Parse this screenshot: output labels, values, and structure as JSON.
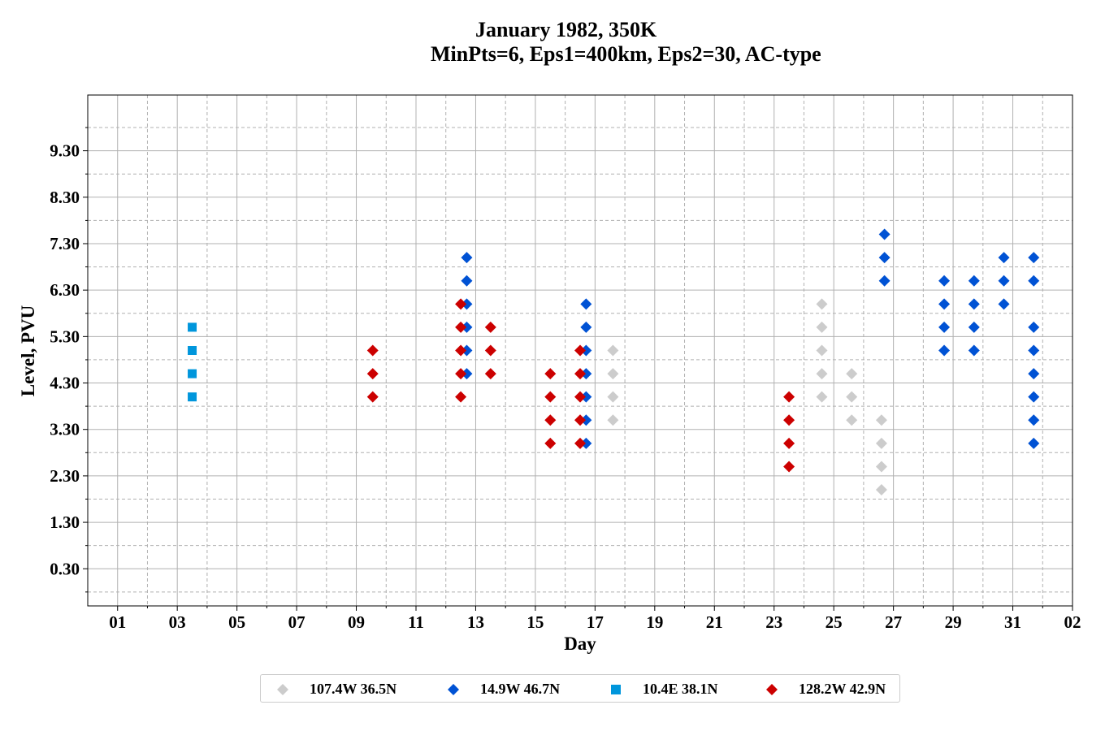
{
  "chart_data": {
    "type": "scatter",
    "title": "January 1982, 350K",
    "subtitle": "MinPts=6, Eps1=400km, Eps2=30, AC-type",
    "xlabel": "Day",
    "ylabel": "Level, PVU",
    "xlim": [
      0,
      33
    ],
    "ylim": [
      -0.5,
      10.5
    ],
    "x_ticks": [
      "01",
      "03",
      "05",
      "07",
      "09",
      "11",
      "13",
      "15",
      "17",
      "19",
      "21",
      "23",
      "25",
      "27",
      "29",
      "31",
      "02"
    ],
    "y_ticks": [
      "0.30",
      "1.30",
      "2.30",
      "3.30",
      "4.30",
      "5.30",
      "6.30",
      "7.30",
      "8.30",
      "9.30"
    ],
    "grid": true,
    "legend_position": "bottom-center",
    "series": [
      {
        "name": "107.4W 36.5N",
        "color": "#cccccc",
        "marker": "diamond",
        "points": [
          [
            17.6,
            3.5
          ],
          [
            17.6,
            4.0
          ],
          [
            17.6,
            4.5
          ],
          [
            17.6,
            5.0
          ],
          [
            24.6,
            4.0
          ],
          [
            24.6,
            4.5
          ],
          [
            24.6,
            5.0
          ],
          [
            24.6,
            5.5
          ],
          [
            24.6,
            6.0
          ],
          [
            25.6,
            3.5
          ],
          [
            25.6,
            4.0
          ],
          [
            25.6,
            4.5
          ],
          [
            26.6,
            2.0
          ],
          [
            26.6,
            2.5
          ],
          [
            26.6,
            3.0
          ],
          [
            26.6,
            3.5
          ]
        ]
      },
      {
        "name": "14.9W 46.7N",
        "color": "#0052d4",
        "marker": "diamond",
        "points": [
          [
            12.7,
            4.5
          ],
          [
            12.7,
            5.0
          ],
          [
            12.7,
            5.5
          ],
          [
            12.7,
            6.0
          ],
          [
            12.7,
            6.5
          ],
          [
            12.7,
            7.0
          ],
          [
            16.7,
            3.0
          ],
          [
            16.7,
            3.5
          ],
          [
            16.7,
            4.0
          ],
          [
            16.7,
            4.5
          ],
          [
            16.7,
            5.0
          ],
          [
            16.7,
            5.5
          ],
          [
            16.7,
            6.0
          ],
          [
            26.7,
            6.5
          ],
          [
            26.7,
            7.0
          ],
          [
            26.7,
            7.5
          ],
          [
            28.7,
            5.0
          ],
          [
            28.7,
            5.5
          ],
          [
            28.7,
            6.0
          ],
          [
            28.7,
            6.5
          ],
          [
            29.7,
            5.0
          ],
          [
            29.7,
            5.5
          ],
          [
            29.7,
            6.0
          ],
          [
            29.7,
            6.5
          ],
          [
            30.7,
            6.0
          ],
          [
            30.7,
            6.5
          ],
          [
            30.7,
            7.0
          ],
          [
            31.7,
            3.0
          ],
          [
            31.7,
            3.5
          ],
          [
            31.7,
            4.0
          ],
          [
            31.7,
            4.5
          ],
          [
            31.7,
            5.0
          ],
          [
            31.7,
            5.5
          ],
          [
            31.7,
            6.5
          ],
          [
            31.7,
            7.0
          ]
        ]
      },
      {
        "name": "10.4E 38.1N",
        "color": "#0096dc",
        "marker": "square",
        "points": [
          [
            3.5,
            4.0
          ],
          [
            3.5,
            4.5
          ],
          [
            3.5,
            5.0
          ],
          [
            3.5,
            5.5
          ]
        ]
      },
      {
        "name": "128.2W 42.9N",
        "color": "#cc0000",
        "marker": "diamond",
        "points": [
          [
            9.55,
            4.0
          ],
          [
            9.55,
            4.5
          ],
          [
            9.55,
            5.0
          ],
          [
            12.5,
            4.0
          ],
          [
            12.5,
            4.5
          ],
          [
            12.5,
            5.0
          ],
          [
            12.5,
            5.5
          ],
          [
            12.5,
            6.0
          ],
          [
            13.5,
            4.5
          ],
          [
            13.5,
            5.0
          ],
          [
            13.5,
            5.5
          ],
          [
            15.5,
            3.0
          ],
          [
            15.5,
            3.5
          ],
          [
            15.5,
            4.0
          ],
          [
            15.5,
            4.5
          ],
          [
            16.5,
            3.0
          ],
          [
            16.5,
            3.5
          ],
          [
            16.5,
            4.0
          ],
          [
            16.5,
            4.5
          ],
          [
            16.5,
            5.0
          ],
          [
            23.5,
            2.5
          ],
          [
            23.5,
            3.0
          ],
          [
            23.5,
            3.5
          ],
          [
            23.5,
            4.0
          ]
        ]
      }
    ]
  }
}
